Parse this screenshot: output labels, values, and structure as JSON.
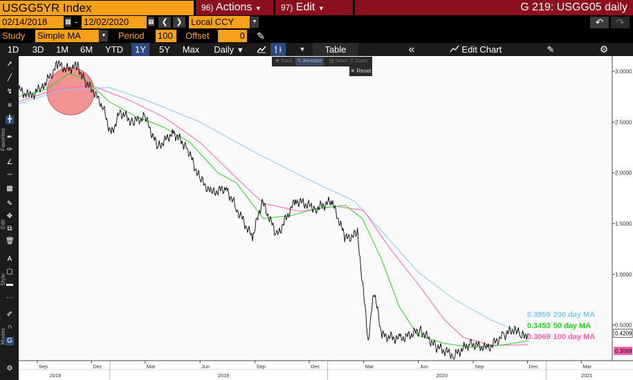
{
  "header": {
    "ticker": "USGG5YR Index",
    "actions_num": "96)",
    "actions_label": "Actions",
    "edit_num": "97)",
    "edit_label": "Edit",
    "page_title": "G 219: USGG05 daily"
  },
  "range": {
    "start": "02/14/2018",
    "separator": "-",
    "end": "12/02/2020",
    "currency": "Local CCY"
  },
  "study": {
    "label": "Study",
    "value": "Simple MA",
    "period_label": "Period",
    "period_value": "100",
    "offset_label": "Offset",
    "offset_value": "0"
  },
  "toolbar": {
    "periods": [
      "1D",
      "3D",
      "1M",
      "6M",
      "YTD",
      "1Y",
      "5Y",
      "Max"
    ],
    "selected_period": "1Y",
    "frequency": "Daily",
    "table_label": "Table",
    "edit_chart_label": "Edit Chart"
  },
  "annotation_popup": {
    "items": [
      "Track",
      "Annotate",
      "News",
      "Zoom"
    ],
    "reset_label": "Reset"
  },
  "sidebar": {
    "sections": [
      "Favorites",
      "Edit",
      "Style",
      "Modes"
    ]
  },
  "colors": {
    "price": "#000000",
    "ma200": "#86c6f2",
    "ma50": "#22d61a",
    "ma100": "#ff5fb0",
    "highlight": "#f08080",
    "plot_bg": "#ffffff",
    "accent_orange": "#f7a11a",
    "accent_red": "#8b0f1e"
  },
  "chart_data": {
    "type": "line",
    "y_scale": "linear",
    "ylim": [
      0.15,
      3.15
    ],
    "y_ticks": [
      "3.0000",
      "2.5000",
      "2.0000",
      "1.5000",
      "1.0000",
      "0.5000"
    ],
    "x_month_ticks": [
      "Sep",
      "Dec",
      "Mar",
      "Jun",
      "Sep",
      "Dec",
      "Mar",
      "Jun",
      "Sep",
      "Dec",
      "Mar"
    ],
    "x_year_labels": [
      "2018",
      "2019",
      "2020",
      "2021"
    ],
    "grid": false,
    "legend_position": "right",
    "series": [
      {
        "name": "USGG5YR Index",
        "label": "0.4209",
        "points": [
          [
            "2018-08-01",
            2.82
          ],
          [
            "2018-08-20",
            2.75
          ],
          [
            "2018-09-10",
            2.85
          ],
          [
            "2018-09-25",
            2.97
          ],
          [
            "2018-10-05",
            3.07
          ],
          [
            "2018-10-20",
            3.02
          ],
          [
            "2018-11-08",
            3.05
          ],
          [
            "2018-11-20",
            2.9
          ],
          [
            "2018-12-05",
            2.8
          ],
          [
            "2018-12-20",
            2.65
          ],
          [
            "2019-01-03",
            2.38
          ],
          [
            "2019-01-18",
            2.6
          ],
          [
            "2019-02-08",
            2.5
          ],
          [
            "2019-03-01",
            2.55
          ],
          [
            "2019-03-22",
            2.25
          ],
          [
            "2019-04-17",
            2.4
          ],
          [
            "2019-05-10",
            2.25
          ],
          [
            "2019-05-31",
            1.95
          ],
          [
            "2019-06-20",
            1.8
          ],
          [
            "2019-07-15",
            1.85
          ],
          [
            "2019-08-01",
            1.65
          ],
          [
            "2019-08-28",
            1.36
          ],
          [
            "2019-09-13",
            1.72
          ],
          [
            "2019-10-08",
            1.38
          ],
          [
            "2019-11-08",
            1.73
          ],
          [
            "2019-12-13",
            1.65
          ],
          [
            "2020-01-08",
            1.72
          ],
          [
            "2020-01-31",
            1.35
          ],
          [
            "2020-02-20",
            1.4
          ],
          [
            "2020-03-09",
            0.35
          ],
          [
            "2020-03-18",
            0.85
          ],
          [
            "2020-04-01",
            0.4
          ],
          [
            "2020-05-01",
            0.36
          ],
          [
            "2020-06-05",
            0.45
          ],
          [
            "2020-06-30",
            0.29
          ],
          [
            "2020-07-31",
            0.2
          ],
          [
            "2020-08-26",
            0.32
          ],
          [
            "2020-09-25",
            0.27
          ],
          [
            "2020-10-22",
            0.4
          ],
          [
            "2020-11-11",
            0.47
          ],
          [
            "2020-11-20",
            0.38
          ],
          [
            "2020-12-02",
            0.42
          ]
        ]
      },
      {
        "name": "200 day MA",
        "label": "0.3959",
        "points": [
          [
            "2018-08-01",
            2.68
          ],
          [
            "2018-10-15",
            2.82
          ],
          [
            "2018-12-31",
            2.84
          ],
          [
            "2019-03-01",
            2.72
          ],
          [
            "2019-06-01",
            2.5
          ],
          [
            "2019-09-01",
            2.2
          ],
          [
            "2019-12-01",
            1.93
          ],
          [
            "2020-02-15",
            1.72
          ],
          [
            "2020-04-15",
            1.33
          ],
          [
            "2020-06-01",
            1.02
          ],
          [
            "2020-08-01",
            0.75
          ],
          [
            "2020-10-01",
            0.55
          ],
          [
            "2020-12-02",
            0.396
          ]
        ]
      },
      {
        "name": "50 day MA",
        "label": "0.3453",
        "points": [
          [
            "2018-08-01",
            2.75
          ],
          [
            "2018-09-15",
            2.82
          ],
          [
            "2018-10-25",
            2.98
          ],
          [
            "2018-11-20",
            2.92
          ],
          [
            "2018-12-31",
            2.7
          ],
          [
            "2019-02-15",
            2.55
          ],
          [
            "2019-04-01",
            2.45
          ],
          [
            "2019-05-15",
            2.3
          ],
          [
            "2019-07-01",
            2.0
          ],
          [
            "2019-08-01",
            1.9
          ],
          [
            "2019-09-15",
            1.55
          ],
          [
            "2019-11-01",
            1.58
          ],
          [
            "2019-12-15",
            1.65
          ],
          [
            "2020-01-31",
            1.68
          ],
          [
            "2020-02-28",
            1.55
          ],
          [
            "2020-03-31",
            1.15
          ],
          [
            "2020-04-30",
            0.68
          ],
          [
            "2020-05-31",
            0.4
          ],
          [
            "2020-07-15",
            0.32
          ],
          [
            "2020-08-31",
            0.28
          ],
          [
            "2020-10-15",
            0.3
          ],
          [
            "2020-12-02",
            0.345
          ]
        ]
      },
      {
        "name": "100 day MA",
        "label": "0.3069",
        "points": [
          [
            "2018-08-01",
            2.7
          ],
          [
            "2018-10-01",
            2.82
          ],
          [
            "2018-12-01",
            2.86
          ],
          [
            "2019-02-01",
            2.72
          ],
          [
            "2019-04-01",
            2.55
          ],
          [
            "2019-06-01",
            2.3
          ],
          [
            "2019-08-01",
            1.95
          ],
          [
            "2019-09-15",
            1.7
          ],
          [
            "2019-11-15",
            1.62
          ],
          [
            "2020-01-15",
            1.67
          ],
          [
            "2020-03-01",
            1.63
          ],
          [
            "2020-04-15",
            1.25
          ],
          [
            "2020-06-01",
            0.9
          ],
          [
            "2020-07-15",
            0.55
          ],
          [
            "2020-08-15",
            0.38
          ],
          [
            "2020-10-01",
            0.3
          ],
          [
            "2020-12-02",
            0.307
          ]
        ]
      }
    ]
  }
}
